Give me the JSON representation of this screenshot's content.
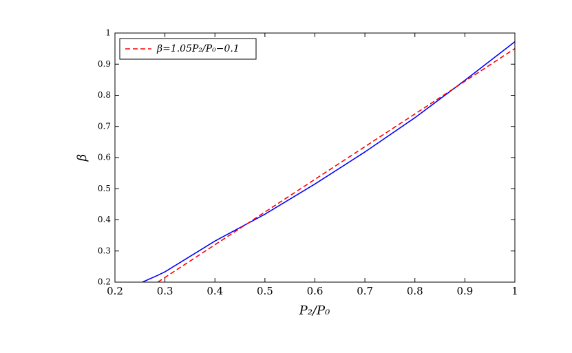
{
  "chart_data": {
    "type": "line",
    "x_label": "P₂/P₀",
    "y_label": "β",
    "x": [
      0.255,
      0.2857,
      0.3,
      0.4,
      0.5,
      0.6,
      0.7,
      0.8,
      0.9,
      1.0
    ],
    "series": [
      {
        "color": "#0000ff",
        "linestyle": "solid",
        "values": [
          0.2,
          0.222,
          0.233,
          0.332,
          0.418,
          0.515,
          0.618,
          0.728,
          0.848,
          0.972
        ]
      },
      {
        "name": "β=1.05P₂/P₀−0.1",
        "color": "#ff0000",
        "linestyle": "dashed",
        "values": [
          null,
          0.2,
          0.215,
          0.32,
          0.425,
          0.53,
          0.635,
          0.74,
          0.845,
          0.95
        ]
      }
    ],
    "xlim": [
      0.2,
      1.0
    ],
    "xticks": [
      0.2,
      0.3,
      0.4,
      0.5,
      0.6,
      0.7,
      0.8,
      0.9,
      1.0
    ],
    "ylim": [
      0.2,
      1.0
    ],
    "yticks": [
      0.2,
      0.3,
      0.4,
      0.5,
      0.6,
      0.7,
      0.8,
      0.9,
      1.0
    ],
    "legend": "upper left",
    "grid": false
  }
}
